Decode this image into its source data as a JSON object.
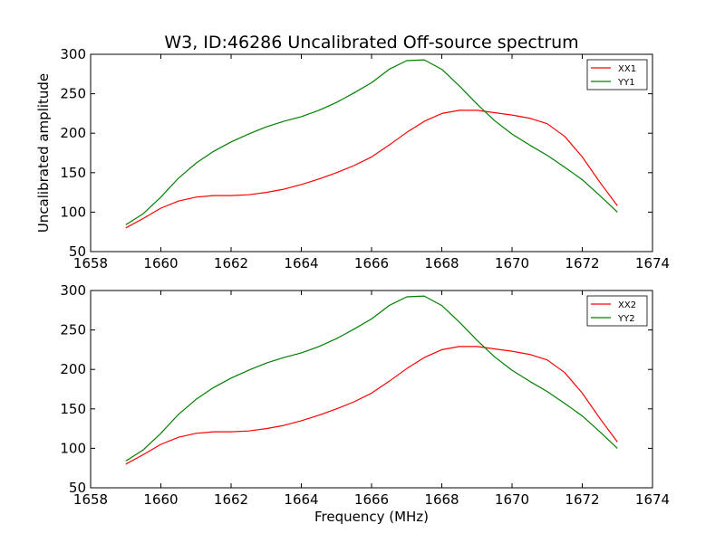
{
  "figure": {
    "title": "W3, ID:46286 Uncalibrated Off-source spectrum",
    "colors": {
      "XX": "#ff0000",
      "YY": "#008000"
    }
  },
  "chart_data": [
    {
      "type": "line",
      "title": "W3, ID:46286 Uncalibrated Off-source spectrum",
      "xlabel": "",
      "ylabel": "Uncalibrated amplitude",
      "xlim": [
        1658,
        1674
      ],
      "ylim": [
        50,
        300
      ],
      "xticks": [
        1658,
        1660,
        1662,
        1664,
        1666,
        1668,
        1670,
        1672,
        1674
      ],
      "yticks": [
        50,
        100,
        150,
        200,
        250,
        300
      ],
      "grid": false,
      "legend": "top-right",
      "series": [
        {
          "name": "XX1",
          "color": "#ff0000",
          "x": [
            1659.0,
            1659.5,
            1660.0,
            1660.5,
            1661.0,
            1661.5,
            1662.0,
            1662.5,
            1663.0,
            1663.5,
            1664.0,
            1664.5,
            1665.0,
            1665.5,
            1666.0,
            1666.5,
            1667.0,
            1667.5,
            1668.0,
            1668.5,
            1669.0,
            1669.5,
            1670.0,
            1670.5,
            1671.0,
            1671.5,
            1672.0,
            1672.5,
            1673.0
          ],
          "y": [
            80,
            92,
            105,
            114,
            119,
            121,
            121,
            122,
            125,
            129,
            135,
            142,
            150,
            159,
            170,
            185,
            201,
            215,
            225,
            229,
            229,
            226,
            223,
            219,
            212,
            196,
            170,
            138,
            108
          ]
        },
        {
          "name": "YY1",
          "color": "#008000",
          "x": [
            1659.0,
            1659.5,
            1660.0,
            1660.5,
            1661.0,
            1661.5,
            1662.0,
            1662.5,
            1663.0,
            1663.5,
            1664.0,
            1664.5,
            1665.0,
            1665.5,
            1666.0,
            1666.5,
            1667.0,
            1667.5,
            1668.0,
            1668.5,
            1669.0,
            1669.5,
            1670.0,
            1670.5,
            1671.0,
            1671.5,
            1672.0,
            1672.5,
            1673.0
          ],
          "y": [
            84,
            98,
            119,
            143,
            162,
            177,
            189,
            199,
            208,
            215,
            221,
            229,
            239,
            251,
            264,
            281,
            292,
            293,
            281,
            260,
            237,
            216,
            199,
            185,
            172,
            157,
            141,
            121,
            100
          ]
        }
      ]
    },
    {
      "type": "line",
      "title": "",
      "xlabel": "Frequency (MHz)",
      "ylabel": "",
      "xlim": [
        1658,
        1674
      ],
      "ylim": [
        50,
        300
      ],
      "xticks": [
        1658,
        1660,
        1662,
        1664,
        1666,
        1668,
        1670,
        1672,
        1674
      ],
      "yticks": [
        50,
        100,
        150,
        200,
        250,
        300
      ],
      "grid": false,
      "legend": "top-right",
      "series": [
        {
          "name": "XX2",
          "color": "#ff0000",
          "x": [
            1659.0,
            1659.5,
            1660.0,
            1660.5,
            1661.0,
            1661.5,
            1662.0,
            1662.5,
            1663.0,
            1663.5,
            1664.0,
            1664.5,
            1665.0,
            1665.5,
            1666.0,
            1666.5,
            1667.0,
            1667.5,
            1668.0,
            1668.5,
            1669.0,
            1669.5,
            1670.0,
            1670.5,
            1671.0,
            1671.5,
            1672.0,
            1672.5,
            1673.0
          ],
          "y": [
            80,
            92,
            105,
            114,
            119,
            121,
            121,
            122,
            125,
            129,
            135,
            142,
            150,
            159,
            170,
            185,
            201,
            215,
            225,
            229,
            229,
            226,
            223,
            219,
            212,
            196,
            170,
            138,
            108
          ]
        },
        {
          "name": "YY2",
          "color": "#008000",
          "x": [
            1659.0,
            1659.5,
            1660.0,
            1660.5,
            1661.0,
            1661.5,
            1662.0,
            1662.5,
            1663.0,
            1663.5,
            1664.0,
            1664.5,
            1665.0,
            1665.5,
            1666.0,
            1666.5,
            1667.0,
            1667.5,
            1668.0,
            1668.5,
            1669.0,
            1669.5,
            1670.0,
            1670.5,
            1671.0,
            1671.5,
            1672.0,
            1672.5,
            1673.0
          ],
          "y": [
            84,
            98,
            119,
            143,
            162,
            177,
            189,
            199,
            208,
            215,
            221,
            229,
            239,
            251,
            264,
            281,
            292,
            293,
            281,
            260,
            237,
            216,
            199,
            185,
            172,
            157,
            141,
            121,
            100
          ]
        }
      ]
    }
  ]
}
